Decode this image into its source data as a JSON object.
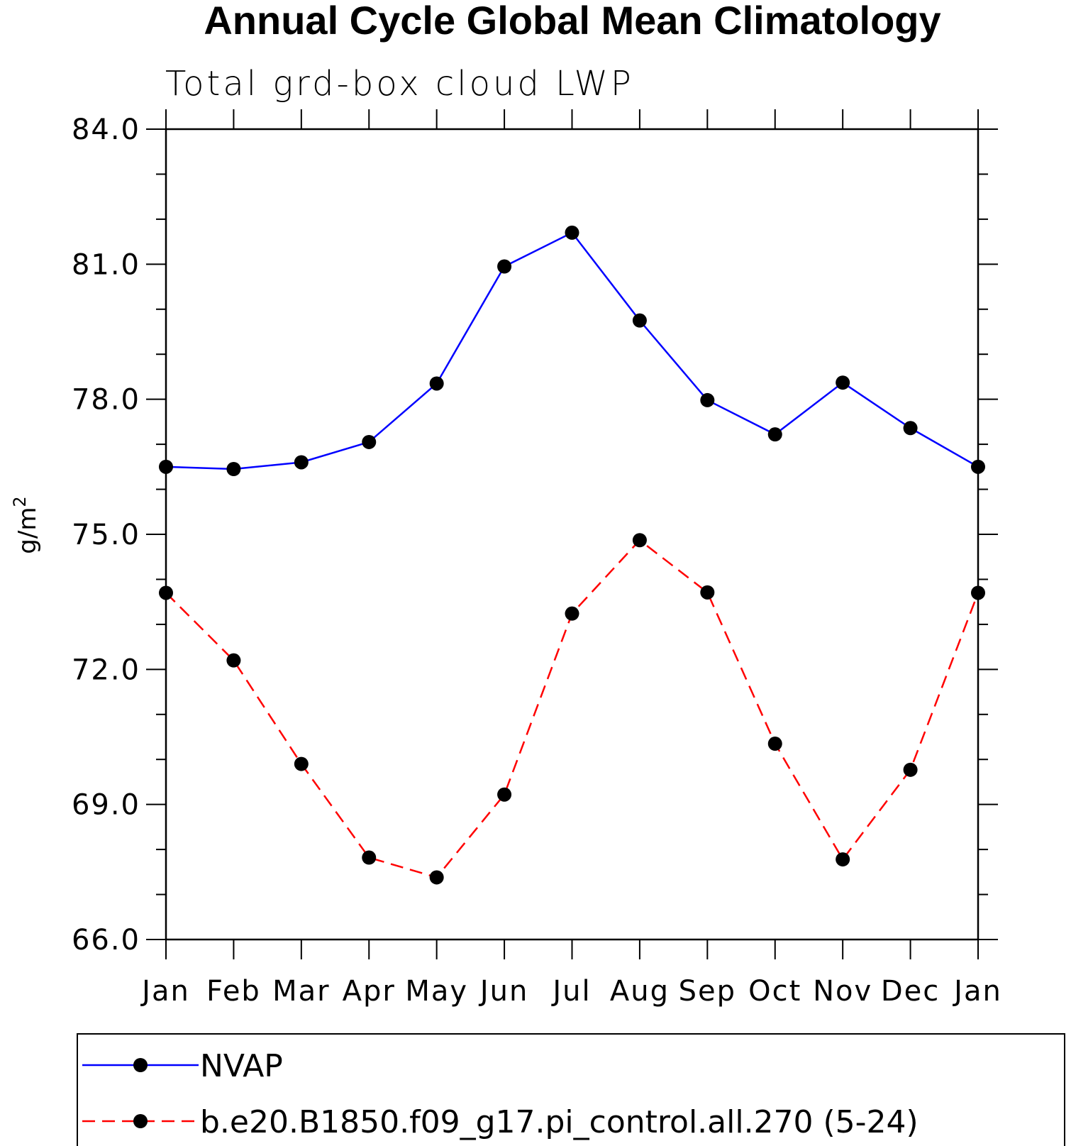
{
  "chart_data": {
    "type": "line",
    "title": "Annual Cycle Global Mean Climatology",
    "subtitle": "Total grd-box cloud LWP",
    "ylabel": "g/m",
    "ylabel_superscript": "2",
    "xlabel": "",
    "ylim": [
      66.0,
      84.0
    ],
    "y_major_ticks": [
      66.0,
      69.0,
      72.0,
      75.0,
      78.0,
      81.0,
      84.0
    ],
    "y_tick_labels": [
      "66.0",
      "69.0",
      "72.0",
      "75.0",
      "78.0",
      "81.0",
      "84.0"
    ],
    "y_minor_step": 1.0,
    "categories": [
      "Jan",
      "Feb",
      "Mar",
      "Apr",
      "May",
      "Jun",
      "Jul",
      "Aug",
      "Sep",
      "Oct",
      "Nov",
      "Dec",
      "Jan"
    ],
    "series": [
      {
        "name": "NVAP",
        "color": "#0000ff",
        "style": "solid",
        "marker": "circle",
        "values": [
          76.5,
          76.45,
          76.6,
          77.05,
          78.35,
          80.95,
          81.7,
          79.75,
          77.98,
          77.22,
          78.37,
          77.36,
          76.5
        ]
      },
      {
        "name": "b.e20.B1850.f09_g17.pi_control.all.270 (5-24)",
        "color": "#ff0000",
        "style": "dashed",
        "marker": "circle",
        "values": [
          73.7,
          72.2,
          69.9,
          67.82,
          67.38,
          69.22,
          73.24,
          74.87,
          73.71,
          70.35,
          67.78,
          69.77,
          73.7
        ]
      }
    ],
    "legend_position": "bottom",
    "grid": false
  }
}
